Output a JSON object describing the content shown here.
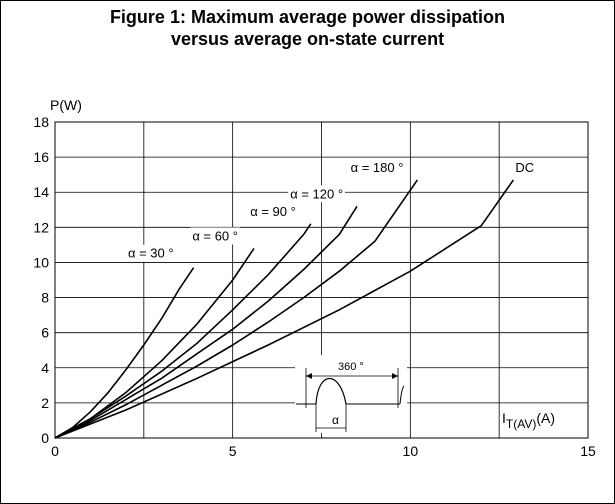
{
  "figure": {
    "title_line1": "Figure 1: Maximum average power dissipation",
    "title_line2": "versus average on-state current"
  },
  "chart_data": {
    "type": "line",
    "title": "Figure 1: Maximum average power dissipation versus average on-state current",
    "xlabel_main": "I",
    "xlabel_sub": "T(AV)",
    "xlabel_unit": "(A)",
    "ylabel": "P(W)",
    "xlim": [
      0,
      15
    ],
    "ylim": [
      0,
      18
    ],
    "x_ticks": [
      0,
      5,
      10,
      15
    ],
    "y_ticks": [
      0,
      2,
      4,
      6,
      8,
      10,
      12,
      14,
      16,
      18
    ],
    "grid": true,
    "series": [
      {
        "name": "α = 30 °",
        "x": [
          0,
          0.5,
          1,
          1.5,
          2,
          2.5,
          3,
          3.5,
          3.9
        ],
        "y": [
          0,
          0.6,
          1.5,
          2.6,
          3.9,
          5.3,
          6.8,
          8.5,
          9.7
        ]
      },
      {
        "name": "α = 60 °",
        "x": [
          0,
          1,
          2,
          3,
          4,
          5,
          5.6
        ],
        "y": [
          0,
          1.1,
          2.6,
          4.4,
          6.5,
          9.0,
          10.8
        ]
      },
      {
        "name": "α = 90 °",
        "x": [
          0,
          1,
          2,
          3,
          4,
          5,
          6,
          7,
          7.2
        ],
        "y": [
          0,
          1.1,
          2.4,
          3.8,
          5.4,
          7.3,
          9.3,
          11.6,
          12.2
        ]
      },
      {
        "name": "α = 120 °",
        "x": [
          0,
          1,
          2,
          3,
          4,
          5,
          6,
          7,
          8,
          8.5
        ],
        "y": [
          0,
          1.0,
          2.2,
          3.4,
          4.8,
          6.2,
          7.8,
          9.6,
          11.6,
          13.2
        ]
      },
      {
        "name": "α = 180 °",
        "x": [
          0,
          1,
          2,
          3,
          4,
          5,
          6,
          7,
          8,
          9,
          10.2
        ],
        "y": [
          0,
          0.9,
          1.9,
          3.0,
          4.1,
          5.3,
          6.6,
          8.0,
          9.5,
          11.2,
          14.7
        ]
      },
      {
        "name": "DC",
        "x": [
          0,
          2,
          4,
          6,
          8,
          10,
          12,
          12.9
        ],
        "y": [
          0,
          1.6,
          3.4,
          5.3,
          7.3,
          9.5,
          12.1,
          14.7
        ]
      }
    ],
    "inset": {
      "top_label": "360 °",
      "bottom_label": "α"
    }
  }
}
